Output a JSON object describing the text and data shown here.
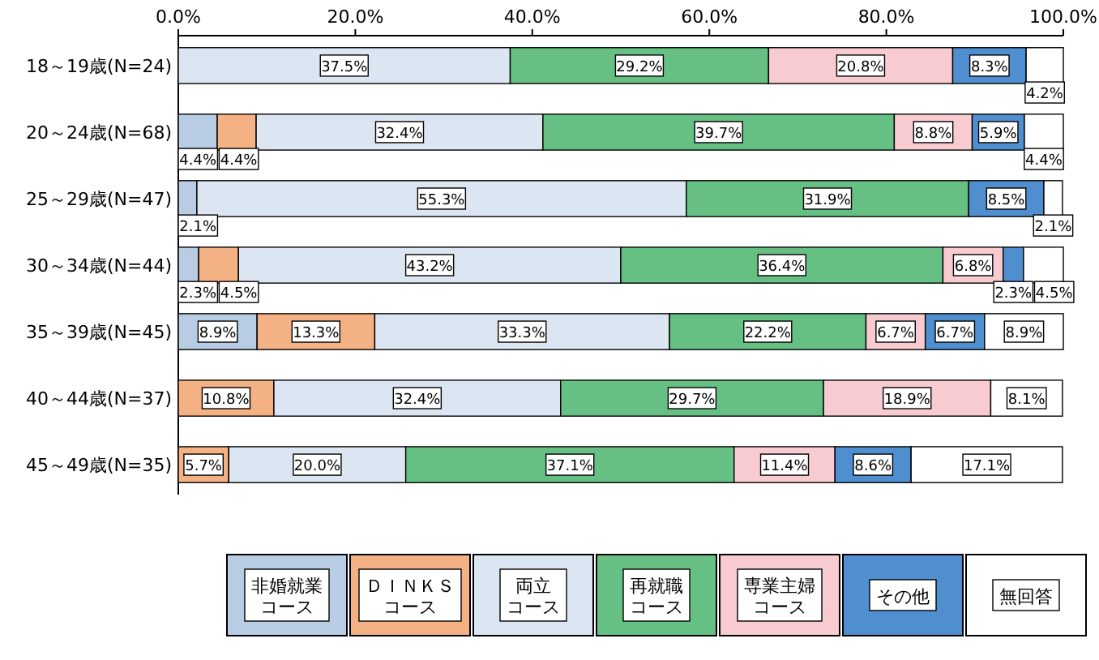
{
  "chart_data": {
    "type": "bar",
    "orientation": "horizontal",
    "stacked": true,
    "categories": [
      "18～19歳(N=24)",
      "20～24歳(N=68)",
      "25～29歳(N=47)",
      "30～34歳(N=44)",
      "35～39歳(N=45)",
      "40～44歳(N=37)",
      "45～49歳(N=35)"
    ],
    "series": [
      {
        "name": "非婚就業コース",
        "color": "#b8cce4",
        "values": [
          0,
          4.4,
          2.1,
          2.3,
          8.9,
          0,
          0
        ],
        "value_labels": [
          null,
          "4.4%",
          "2.1%",
          "2.3%",
          "8.9%",
          null,
          null
        ]
      },
      {
        "name": "ＤＩＮＫＳコース",
        "color": "#f4b183",
        "values": [
          0,
          4.4,
          0,
          4.5,
          13.3,
          10.8,
          5.7
        ],
        "value_labels": [
          null,
          "4.4%",
          null,
          "4.5%",
          "13.3%",
          "10.8%",
          "5.7%"
        ]
      },
      {
        "name": "両立コース",
        "color": "#dce6f2",
        "values": [
          37.5,
          32.4,
          55.3,
          43.2,
          33.3,
          32.4,
          20.0
        ],
        "value_labels": [
          "37.5%",
          "32.4%",
          "55.3%",
          "43.2%",
          "33.3%",
          "32.4%",
          "20.0%"
        ]
      },
      {
        "name": "再就職コース",
        "color": "#66c083",
        "values": [
          29.2,
          39.7,
          31.9,
          36.4,
          22.2,
          29.7,
          37.1
        ],
        "value_labels": [
          "29.2%",
          "39.7%",
          "31.9%",
          "36.4%",
          "22.2%",
          "29.7%",
          "37.1%"
        ]
      },
      {
        "name": "専業主婦コース",
        "color": "#f8cbd0",
        "values": [
          20.8,
          8.8,
          0,
          6.8,
          6.7,
          18.9,
          11.4
        ],
        "value_labels": [
          "20.8%",
          "8.8%",
          null,
          "6.8%",
          "6.7%",
          "18.9%",
          "11.4%"
        ]
      },
      {
        "name": "その他",
        "color": "#4f8fd0",
        "values": [
          8.3,
          5.9,
          8.5,
          2.3,
          6.7,
          0,
          8.6
        ],
        "value_labels": [
          "8.3%",
          "5.9%",
          "8.5%",
          "2.3%",
          "6.7%",
          null,
          "8.6%"
        ]
      },
      {
        "name": "無回答",
        "color": "#ffffff",
        "values": [
          4.2,
          4.4,
          2.1,
          4.5,
          8.9,
          8.1,
          17.1
        ],
        "value_labels": [
          "4.2%",
          "4.4%",
          "2.1%",
          "4.5%",
          "8.9%",
          "8.1%",
          "17.1%"
        ]
      }
    ],
    "xlim": [
      0,
      100
    ],
    "xticks": [
      {
        "value": 0,
        "label": "0.0%"
      },
      {
        "value": 20,
        "label": "20.0%"
      },
      {
        "value": 40,
        "label": "40.0%"
      },
      {
        "value": 60,
        "label": "60.0%"
      },
      {
        "value": 80,
        "label": "80.0%"
      },
      {
        "value": 100,
        "label": "100.0%"
      }
    ],
    "grid": false,
    "legend": "bottom"
  }
}
